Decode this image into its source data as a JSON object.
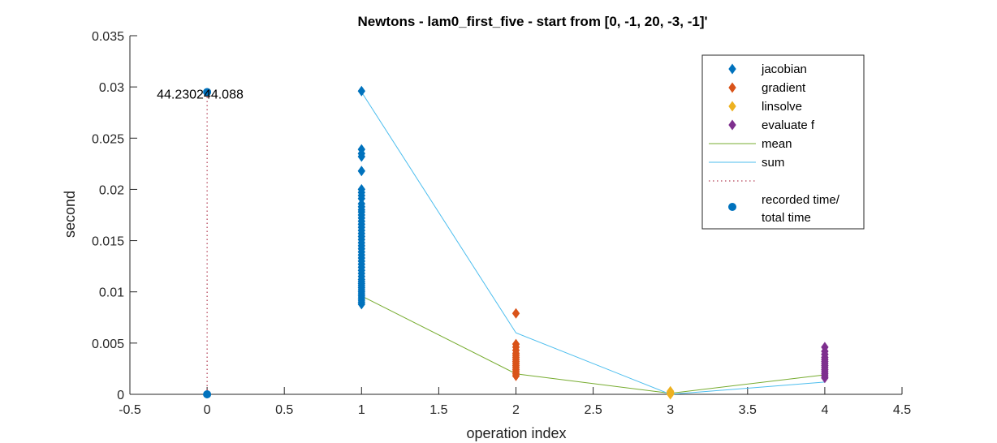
{
  "chart_data": {
    "type": "scatter",
    "title": "Newtons - lam0_first_five - start from [0, -1, 20, -3, -1]'",
    "xlabel": "operation index",
    "ylabel": "second",
    "xlim": [
      -0.5,
      4.5
    ],
    "ylim": [
      0,
      0.035
    ],
    "x_ticks": [
      -0.5,
      0,
      0.5,
      1,
      1.5,
      2,
      2.5,
      3,
      3.5,
      4,
      4.5
    ],
    "x_tick_labels": [
      "-0.5",
      "0",
      "0.5",
      "1",
      "1.5",
      "2",
      "2.5",
      "3",
      "3.5",
      "4",
      "4.5"
    ],
    "y_ticks": [
      0,
      0.005,
      0.01,
      0.015,
      0.02,
      0.025,
      0.03,
      0.035
    ],
    "y_tick_labels": [
      "0",
      "0.005",
      "0.01",
      "0.015",
      "0.02",
      "0.025",
      "0.03",
      "0.035"
    ],
    "grid": false,
    "legend_position": "top-right",
    "annotation": {
      "text": "44.230244.088",
      "x": 0,
      "y": 0.0295
    },
    "series": [
      {
        "name": "jacobian",
        "marker": "diamond",
        "color": "#0072BD",
        "x": 1,
        "y": [
          0.0296,
          0.0239,
          0.0235,
          0.0232,
          0.0218,
          0.02,
          0.0197,
          0.0194,
          0.0191,
          0.0186,
          0.0183,
          0.018,
          0.0178,
          0.0175,
          0.0172,
          0.0169,
          0.0166,
          0.0163,
          0.016,
          0.0157,
          0.0154,
          0.0151,
          0.0148,
          0.0145,
          0.0142,
          0.0139,
          0.0136,
          0.0133,
          0.013,
          0.0127,
          0.0124,
          0.0121,
          0.0118,
          0.0115,
          0.0112,
          0.011,
          0.0108,
          0.0106,
          0.0104,
          0.0102,
          0.01,
          0.0098,
          0.0096,
          0.0094,
          0.0092,
          0.009,
          0.0088
        ]
      },
      {
        "name": "gradient",
        "marker": "diamond",
        "color": "#D95319",
        "x": 2,
        "y": [
          0.0079,
          0.0049,
          0.0046,
          0.0043,
          0.004,
          0.0038,
          0.0036,
          0.0034,
          0.0032,
          0.003,
          0.0028,
          0.0026,
          0.0024,
          0.0022,
          0.002,
          0.0018
        ]
      },
      {
        "name": "linsolve",
        "marker": "diamond",
        "color": "#EDB120",
        "x": 3,
        "y": [
          0.0003,
          0.0002,
          0.0001,
          0.0001,
          0.0
        ]
      },
      {
        "name": "evaluate f",
        "marker": "diamond",
        "color": "#7E2F8E",
        "x": 4,
        "y": [
          0.0046,
          0.0042,
          0.0039,
          0.0036,
          0.0034,
          0.0032,
          0.003,
          0.0028,
          0.0026,
          0.0024,
          0.0022,
          0.002,
          0.0018,
          0.0016
        ]
      },
      {
        "name": "mean",
        "type": "line",
        "color": "#77AC30",
        "x": [
          1,
          2,
          3,
          4
        ],
        "y": [
          0.0096,
          0.002,
          0.0001,
          0.0019
        ]
      },
      {
        "name": "sum",
        "type": "line",
        "color": "#4DBEEE",
        "x": [
          1,
          2,
          3,
          4
        ],
        "y": [
          0.0295,
          0.006,
          0.0,
          0.0012
        ]
      },
      {
        "name": "",
        "type": "dotted-line",
        "color": "#A2142F",
        "x": [
          0,
          0
        ],
        "y": [
          0,
          0.0295
        ]
      },
      {
        "name": "recorded time/\ntotal time",
        "marker": "circle",
        "color": "#0072BD",
        "x": [
          0,
          0
        ],
        "y": [
          0.0295,
          0.0
        ]
      }
    ],
    "legend": [
      {
        "label": "jacobian",
        "kind": "diamond",
        "color": "#0072BD"
      },
      {
        "label": "gradient",
        "kind": "diamond",
        "color": "#D95319"
      },
      {
        "label": "linsolve",
        "kind": "diamond",
        "color": "#EDB120"
      },
      {
        "label": "evaluate f",
        "kind": "diamond",
        "color": "#7E2F8E"
      },
      {
        "label": "mean",
        "kind": "line",
        "color": "#77AC30"
      },
      {
        "label": "sum",
        "kind": "line",
        "color": "#4DBEEE"
      },
      {
        "label": "",
        "kind": "dotted",
        "color": "#A2142F"
      },
      {
        "label": "recorded time/",
        "label2": "total time",
        "kind": "circle",
        "color": "#0072BD"
      }
    ]
  }
}
